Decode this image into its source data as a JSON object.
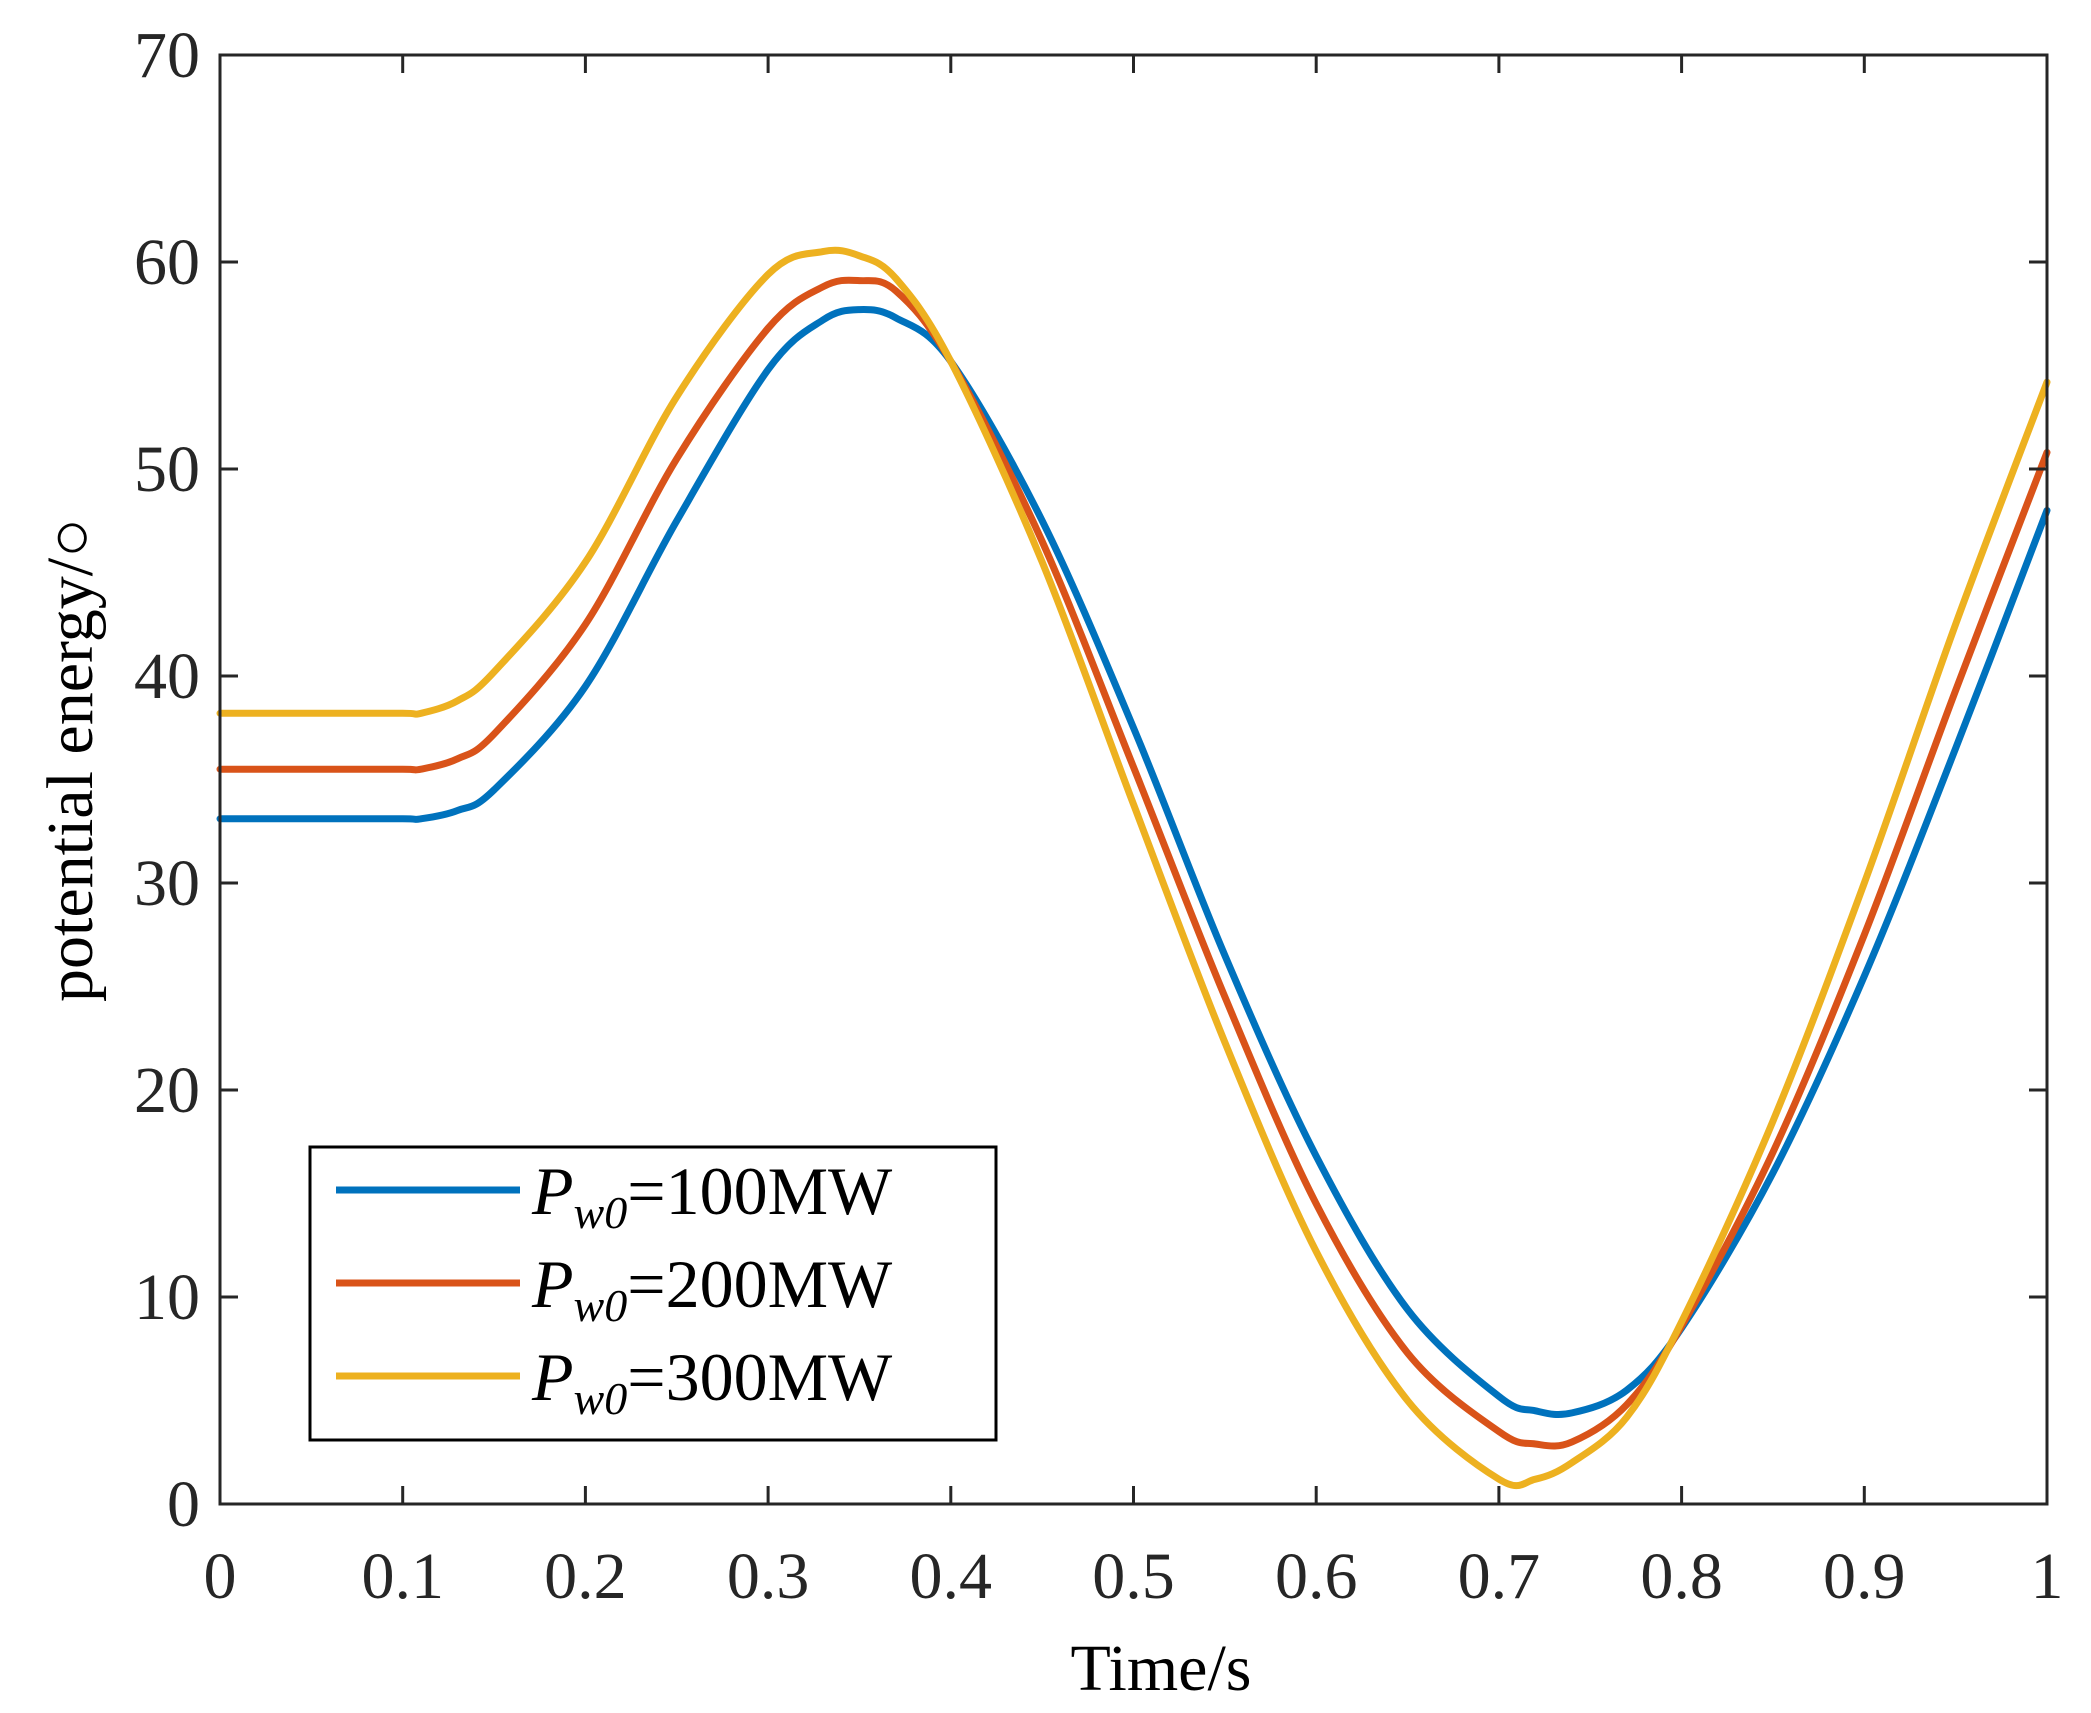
{
  "chart_data": {
    "type": "line",
    "title": "",
    "xlabel": "Time/s",
    "ylabel": "potential energy/○",
    "xlim": [
      0,
      1
    ],
    "ylim": [
      0,
      70
    ],
    "xticks": [
      "0",
      "0.1",
      "0.2",
      "0.3",
      "0.4",
      "0.5",
      "0.6",
      "0.7",
      "0.8",
      "0.9",
      "1"
    ],
    "yticks": [
      "0",
      "10",
      "20",
      "30",
      "40",
      "50",
      "60",
      "70"
    ],
    "grid": false,
    "legend_position": "bottom-left",
    "x": [
      0,
      0.05,
      0.1,
      0.11,
      0.13,
      0.15,
      0.2,
      0.25,
      0.3,
      0.33,
      0.35,
      0.37,
      0.4,
      0.45,
      0.5,
      0.55,
      0.6,
      0.65,
      0.7,
      0.72,
      0.74,
      0.77,
      0.8,
      0.85,
      0.9,
      0.95,
      1.0
    ],
    "series": [
      {
        "name": "Pw0=100MW",
        "symbol": "P",
        "subscript": "w0",
        "suffix": "=100MW",
        "color": "#0072BD",
        "values": [
          33.1,
          33.1,
          33.1,
          33.1,
          33.5,
          34.5,
          39.5,
          47.5,
          54.8,
          57.2,
          57.7,
          57.3,
          55.2,
          47.5,
          37.5,
          26.5,
          16.8,
          9.4,
          5.2,
          4.5,
          4.4,
          5.5,
          8.5,
          16.0,
          25.5,
          36.5,
          48.0
        ]
      },
      {
        "name": "Pw0=200MW",
        "symbol": "P",
        "subscript": "w0",
        "suffix": "=200MW",
        "color": "#D95319",
        "values": [
          35.5,
          35.5,
          35.5,
          35.5,
          36.0,
          37.2,
          42.5,
          50.5,
          56.8,
          58.8,
          59.1,
          58.6,
          55.2,
          46.5,
          35.6,
          24.5,
          14.5,
          7.3,
          3.5,
          2.9,
          3.0,
          4.8,
          8.6,
          17.0,
          27.5,
          39.3,
          50.8
        ]
      },
      {
        "name": "Pw0=300MW",
        "symbol": "P",
        "subscript": "w0",
        "suffix": "=300MW",
        "color": "#EDB120",
        "values": [
          38.2,
          38.2,
          38.2,
          38.2,
          38.8,
          40.2,
          45.5,
          53.5,
          59.4,
          60.5,
          60.3,
          59.2,
          55.2,
          45.5,
          33.8,
          22.3,
          12.2,
          5.0,
          1.2,
          1.2,
          2.0,
          4.2,
          8.8,
          18.5,
          30.0,
          42.5,
          54.2
        ]
      }
    ]
  }
}
